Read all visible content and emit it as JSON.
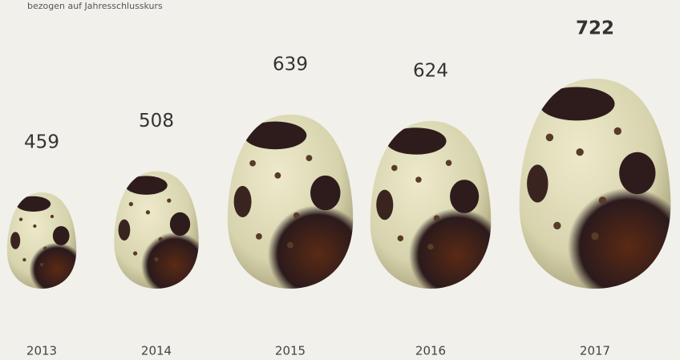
{
  "chart_data": {
    "type": "pictogram",
    "subtitle": "bezogen auf Jahresschlusskurs",
    "categories": [
      "2013",
      "2014",
      "2015",
      "2016",
      "2017"
    ],
    "values": [
      459,
      508,
      639,
      624,
      722
    ],
    "color": "#d9d8b4"
  }
}
